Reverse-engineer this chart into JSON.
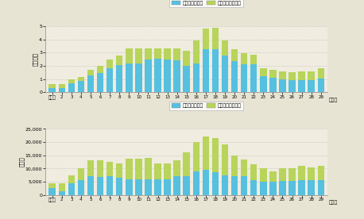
{
  "years": [
    "平成元",
    "2",
    "3",
    "4",
    "5",
    "6",
    "7",
    "8",
    "9",
    "10",
    "11",
    "12",
    "13",
    "14",
    "15",
    "16",
    "17",
    "18",
    "19",
    "20",
    "21",
    "22",
    "23",
    "24",
    "25",
    "26",
    "27",
    "28",
    "29"
  ],
  "top_blue": [
    0.35,
    0.3,
    0.7,
    0.85,
    1.3,
    1.45,
    1.8,
    2.05,
    2.2,
    2.2,
    2.5,
    2.55,
    2.5,
    2.45,
    2.0,
    2.2,
    3.25,
    3.25,
    2.8,
    2.35,
    2.1,
    2.1,
    1.2,
    1.1,
    1.0,
    0.95,
    0.95,
    0.95,
    1.05
  ],
  "top_green": [
    0.25,
    0.35,
    0.3,
    0.3,
    0.4,
    0.55,
    0.7,
    0.75,
    1.1,
    1.15,
    0.85,
    0.75,
    0.8,
    0.85,
    1.15,
    1.75,
    1.6,
    1.65,
    1.15,
    0.9,
    0.85,
    0.75,
    0.65,
    0.6,
    0.6,
    0.55,
    0.65,
    0.65,
    0.75
  ],
  "bot_blue": [
    2500,
    1500,
    4500,
    5500,
    7000,
    6800,
    7000,
    6500,
    5800,
    5800,
    5900,
    6000,
    6000,
    7000,
    7000,
    9000,
    9500,
    8500,
    7500,
    7000,
    7000,
    5500,
    5000,
    5000,
    5200,
    5200,
    5500,
    5500,
    5500
  ],
  "bot_green": [
    2000,
    3000,
    3000,
    4500,
    6000,
    6200,
    5500,
    5500,
    7800,
    8000,
    8000,
    6000,
    6000,
    6000,
    9000,
    11000,
    12500,
    13000,
    11500,
    8000,
    6500,
    6000,
    5000,
    4000,
    5000,
    5000,
    5500,
    5000,
    5500
  ],
  "top_ylabel": "（万件）",
  "bot_ylabel": "（人）",
  "xlabel": "（年）",
  "top_legend1": "刑法犯検挙件数",
  "top_legend2": "特別法犯検挙件数",
  "bot_legend1": "刑法犯検挙人員",
  "bot_legend2": "特別法犯検挙人員",
  "blue_color": "#55c0e0",
  "green_color": "#b8d45a",
  "bg_color": "#e8e4d4",
  "plot_bg": "#f0ece0",
  "grid_color": "#aaaaaa"
}
